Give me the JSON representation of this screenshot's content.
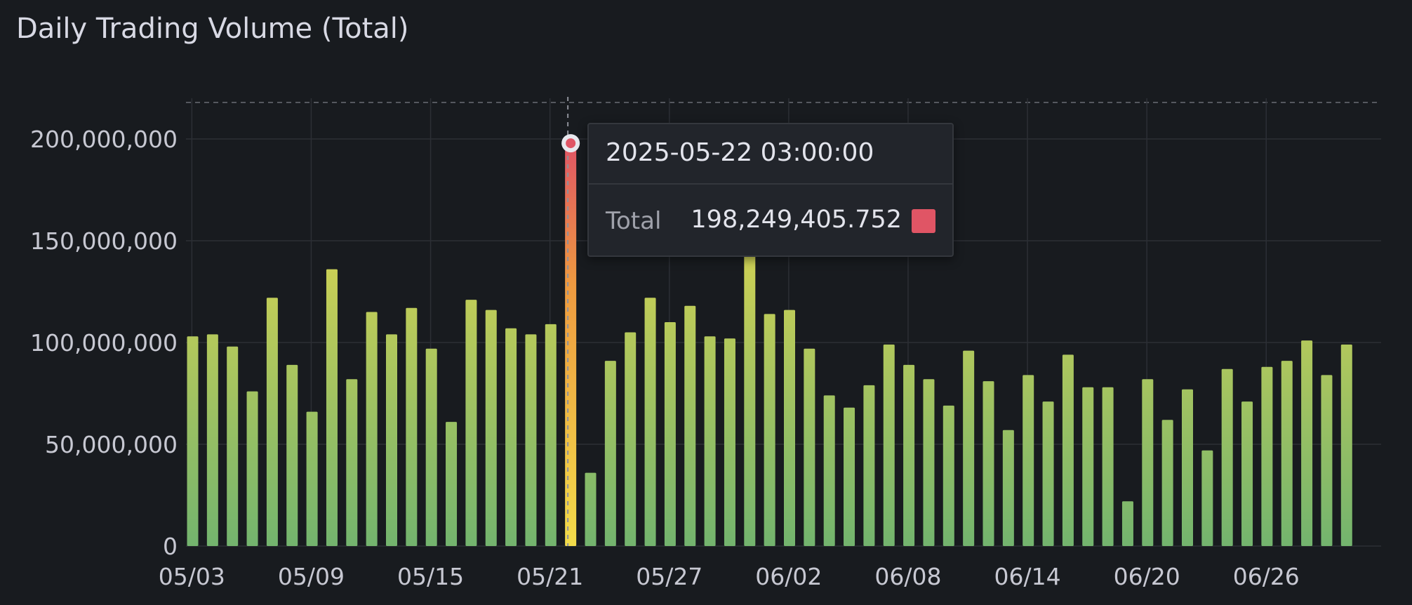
{
  "panel": {
    "title": "Daily Trading Volume (Total)"
  },
  "tooltip": {
    "time": "2025-05-22 03:00:00",
    "series_label": "Total",
    "value": "198,249,405.752",
    "swatch_color": "#e05565"
  },
  "colors": {
    "bar_top": "#f2dc4a",
    "bar_bottom": "#73b46e",
    "highlight_top": "#ee9a40",
    "highlight_bottom": "#e05565",
    "grid": "#2c2f35",
    "axis_text": "#c7c8d2"
  },
  "chart_data": {
    "type": "bar",
    "title": "Daily Trading Volume (Total)",
    "xlabel": "",
    "ylabel": "",
    "ylim": [
      0,
      220000000
    ],
    "yticks": [
      0,
      50000000,
      100000000,
      150000000,
      200000000
    ],
    "ytick_labels": [
      "0",
      "50,000,000",
      "100,000,000",
      "150,000,000",
      "200,000,000"
    ],
    "xtick_labels": [
      "05/03",
      "05/09",
      "05/15",
      "05/21",
      "05/27",
      "06/02",
      "06/08",
      "06/14",
      "06/20",
      "06/26"
    ],
    "xtick_indices": [
      0,
      6,
      12,
      18,
      24,
      30,
      36,
      42,
      48,
      54
    ],
    "highlight_index": 19,
    "grid": true,
    "legend": "none",
    "series": [
      {
        "name": "Total",
        "values": [
          103000000,
          104000000,
          98000000,
          76000000,
          122000000,
          89000000,
          66000000,
          136000000,
          82000000,
          115000000,
          104000000,
          117000000,
          97000000,
          61000000,
          121000000,
          116000000,
          107000000,
          104000000,
          109000000,
          198249405.752,
          36000000,
          91000000,
          105000000,
          122000000,
          110000000,
          118000000,
          103000000,
          102000000,
          148000000,
          114000000,
          116000000,
          97000000,
          74000000,
          68000000,
          79000000,
          99000000,
          89000000,
          82000000,
          69000000,
          96000000,
          81000000,
          57000000,
          84000000,
          71000000,
          94000000,
          78000000,
          78000000,
          22000000,
          82000000,
          62000000,
          77000000,
          47000000,
          87000000,
          71000000,
          88000000,
          91000000,
          101000000,
          84000000,
          99000000
        ]
      }
    ]
  }
}
